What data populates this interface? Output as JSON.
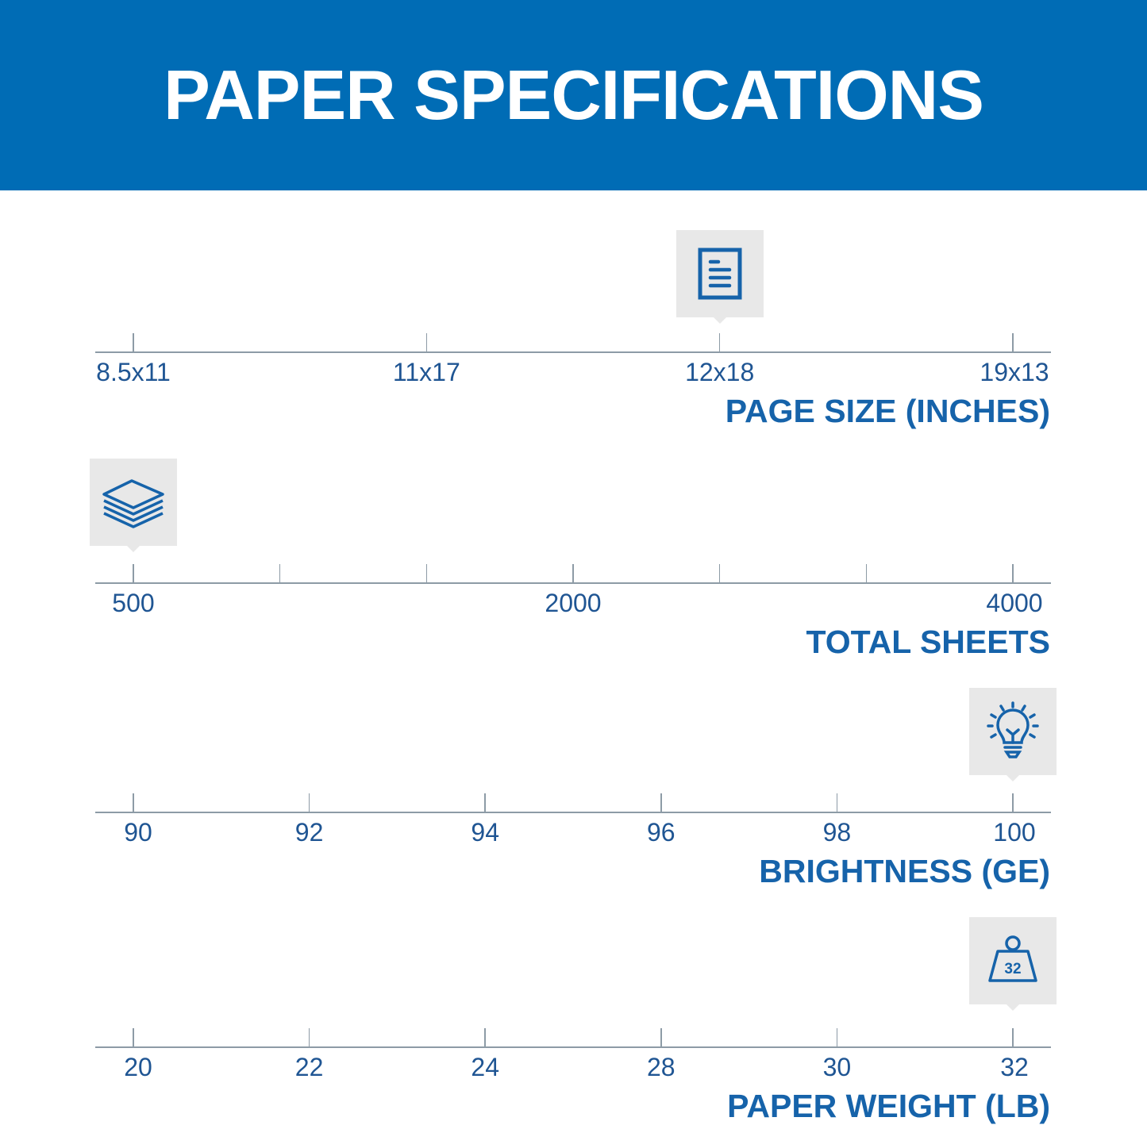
{
  "header": {
    "title": "PAPER SPECIFICATIONS",
    "background": "#006cb5"
  },
  "accent_color": "#1663aa",
  "scales": [
    {
      "title": "PAGE SIZE (INCHES)",
      "icon": "document-icon",
      "ticks": [
        "8.5x11",
        "11x17",
        "12x18",
        "19x13"
      ],
      "selected": "12x18"
    },
    {
      "title": "TOTAL SHEETS",
      "icon": "paper-stack-icon",
      "ticks": [
        "500",
        "",
        "",
        "2000",
        "",
        "",
        "4000"
      ],
      "selected": "500"
    },
    {
      "title": "BRIGHTNESS (GE)",
      "icon": "lightbulb-icon",
      "ticks": [
        "90",
        "92",
        "94",
        "96",
        "98",
        "100"
      ],
      "selected": "100"
    },
    {
      "title": "PAPER WEIGHT (LB)",
      "icon": "weight-icon",
      "icon_text": "32",
      "ticks": [
        "20",
        "22",
        "24",
        "28",
        "30",
        "32"
      ],
      "selected": "32"
    }
  ]
}
